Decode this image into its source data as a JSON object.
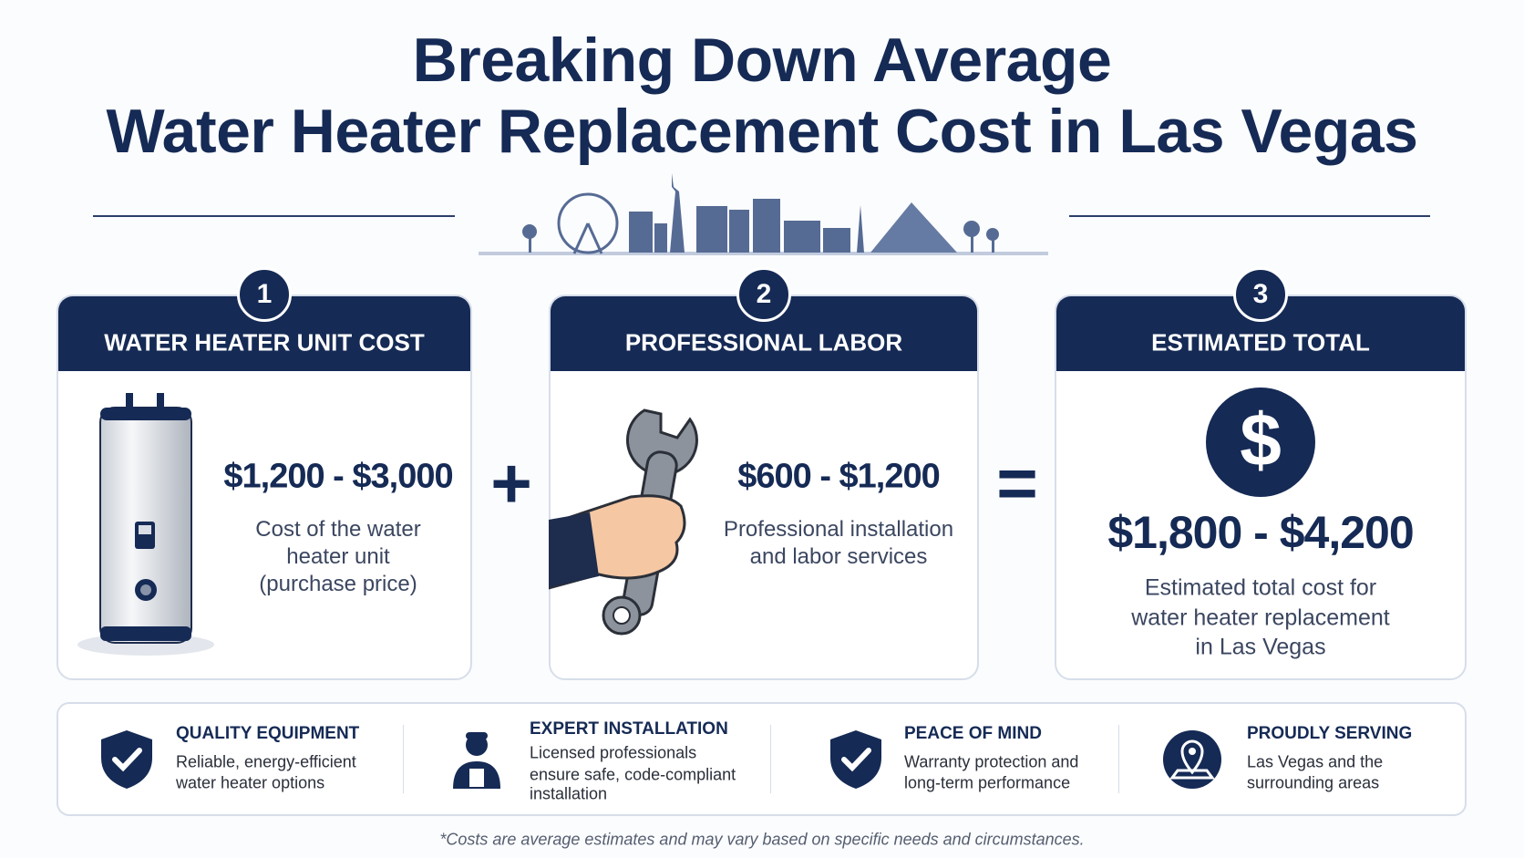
{
  "header": {
    "title_lines": [
      "Breaking Down Average",
      "Water Heater Replacement Cost in Las Vegas"
    ]
  },
  "cards": [
    {
      "number": "1",
      "title": "WATER HEATER UNIT COST",
      "price": "$1,200 - $3,000",
      "description_lines": [
        "Cost of the water",
        "heater unit",
        "(purchase price)"
      ]
    },
    {
      "number": "2",
      "title": "PROFESSIONAL LABOR",
      "price": "$600 - $1,200",
      "description_lines": [
        "Professional installation",
        "and labor services"
      ]
    },
    {
      "number": "3",
      "title": "ESTIMATED TOTAL",
      "price": "$1,800 - $4,200",
      "description_lines": [
        "Estimated total cost for",
        "water heater replacement",
        "in Las Vegas"
      ]
    }
  ],
  "operators": [
    "+",
    "="
  ],
  "features": [
    {
      "title": "QUALITY EQUIPMENT",
      "lines": [
        "Reliable, energy-efficient",
        "water heater options"
      ]
    },
    {
      "title": "EXPERT INSTALLATION",
      "lines": [
        "Licensed professionals",
        "ensure safe, code-compliant",
        "installation"
      ]
    },
    {
      "title": "PEACE OF MIND",
      "lines": [
        "Warranty protection and",
        "long-term performance"
      ]
    },
    {
      "title": "PROUDLY SERVING",
      "lines": [
        "Las Vegas and the",
        "surrounding areas"
      ]
    }
  ],
  "footnote": "*Costs are average estimates and may vary based on specific needs and circumstances."
}
